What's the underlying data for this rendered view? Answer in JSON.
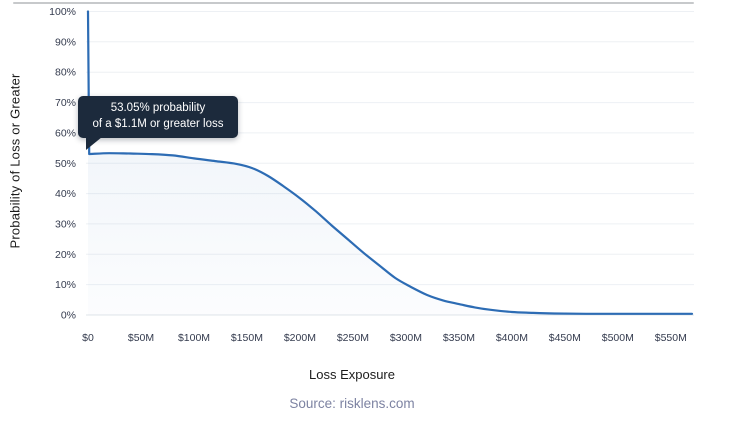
{
  "chart_data": {
    "type": "area",
    "title": "",
    "xlabel": "Loss Exposure",
    "ylabel": "Probability of Loss or Greater",
    "source": "Source: risklens.com",
    "xlim": [
      0,
      570
    ],
    "ylim": [
      0,
      100
    ],
    "grid": "horizontal",
    "legend": "none",
    "x_ticks": [
      {
        "value": 0,
        "label": "$0"
      },
      {
        "value": 50,
        "label": "$50M"
      },
      {
        "value": 100,
        "label": "$100M"
      },
      {
        "value": 150,
        "label": "$150M"
      },
      {
        "value": 200,
        "label": "$200M"
      },
      {
        "value": 250,
        "label": "$250M"
      },
      {
        "value": 300,
        "label": "$300M"
      },
      {
        "value": 350,
        "label": "$350M"
      },
      {
        "value": 400,
        "label": "$400M"
      },
      {
        "value": 450,
        "label": "$450M"
      },
      {
        "value": 500,
        "label": "$500M"
      },
      {
        "value": 550,
        "label": "$550M"
      }
    ],
    "y_ticks": [
      {
        "value": 0,
        "label": "0%"
      },
      {
        "value": 10,
        "label": "10%"
      },
      {
        "value": 20,
        "label": "20%"
      },
      {
        "value": 30,
        "label": "30%"
      },
      {
        "value": 40,
        "label": "40%"
      },
      {
        "value": 50,
        "label": "50%"
      },
      {
        "value": 60,
        "label": "60%"
      },
      {
        "value": 70,
        "label": "70%"
      },
      {
        "value": 80,
        "label": "80%"
      },
      {
        "value": 90,
        "label": "90%"
      },
      {
        "value": 100,
        "label": "100%"
      }
    ],
    "series": [
      {
        "points": [
          [
            0,
            100
          ],
          [
            1.1,
            53.05
          ],
          [
            20,
            53.3
          ],
          [
            40,
            53.2
          ],
          [
            60,
            53.0
          ],
          [
            80,
            52.6
          ],
          [
            100,
            51.6
          ],
          [
            120,
            50.7
          ],
          [
            140,
            49.8
          ],
          [
            155,
            48.4
          ],
          [
            170,
            45.8
          ],
          [
            185,
            42.3
          ],
          [
            200,
            38.5
          ],
          [
            215,
            34.2
          ],
          [
            230,
            29.5
          ],
          [
            245,
            25.0
          ],
          [
            260,
            20.5
          ],
          [
            275,
            16.3
          ],
          [
            290,
            12.2
          ],
          [
            305,
            9.2
          ],
          [
            320,
            6.6
          ],
          [
            335,
            4.8
          ],
          [
            350,
            3.6
          ],
          [
            365,
            2.5
          ],
          [
            380,
            1.7
          ],
          [
            400,
            1.0
          ],
          [
            420,
            0.7
          ],
          [
            440,
            0.5
          ],
          [
            470,
            0.4
          ],
          [
            510,
            0.4
          ],
          [
            550,
            0.4
          ],
          [
            570,
            0.4
          ]
        ]
      }
    ],
    "annotation": {
      "line1": "53.05% probability",
      "line2": "of a $1.1M or greater loss",
      "x": 1.1,
      "y": 53.05
    },
    "colors": {
      "line": "#2d6cb4",
      "fill_top": "rgba(45,108,180,0.10)",
      "fill_bottom": "rgba(45,108,180,0.015)",
      "gridline": "#edf0f4",
      "axis_line": "#dfe4e9",
      "tick_label": "#343b4e",
      "tooltip_bg": "#1c2a3c",
      "tooltip_text": "#ffffff",
      "source_text": "#7d83a2",
      "top_border": "#c7c9cb"
    }
  }
}
